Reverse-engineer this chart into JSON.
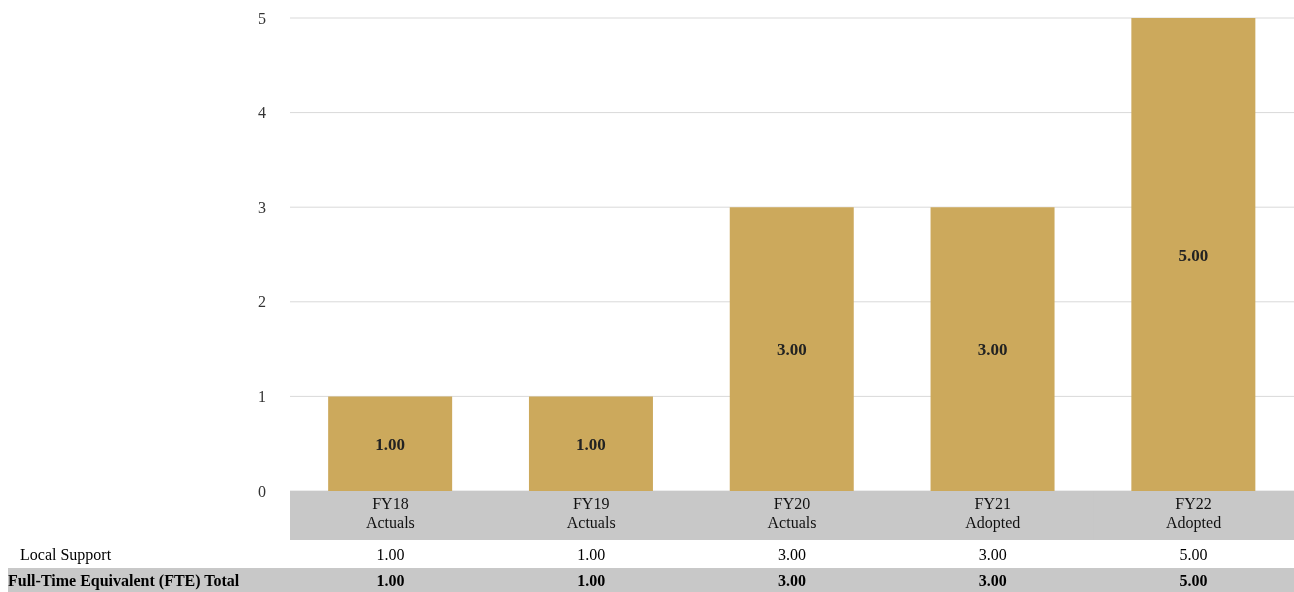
{
  "chart_data": {
    "type": "bar",
    "categories": [
      "FY18 Actuals",
      "FY19 Actuals",
      "FY20 Actuals",
      "FY21 Adopted",
      "FY22 Adopted"
    ],
    "series": [
      {
        "name": "Local Support",
        "color": "#cca95c",
        "values": [
          1,
          1,
          3,
          3,
          5
        ],
        "value_labels": [
          "1.00",
          "1.00",
          "3.00",
          "3.00",
          "5.00"
        ]
      }
    ],
    "totals": [
      "1.00",
      "1.00",
      "3.00",
      "3.00",
      "5.00"
    ],
    "annotations": [
      "Full-Time Equivalent (FTE) Total"
    ],
    "ylim": [
      0,
      5
    ],
    "yticks": [
      0,
      1,
      2,
      3,
      4,
      5
    ],
    "grid": "y"
  }
}
